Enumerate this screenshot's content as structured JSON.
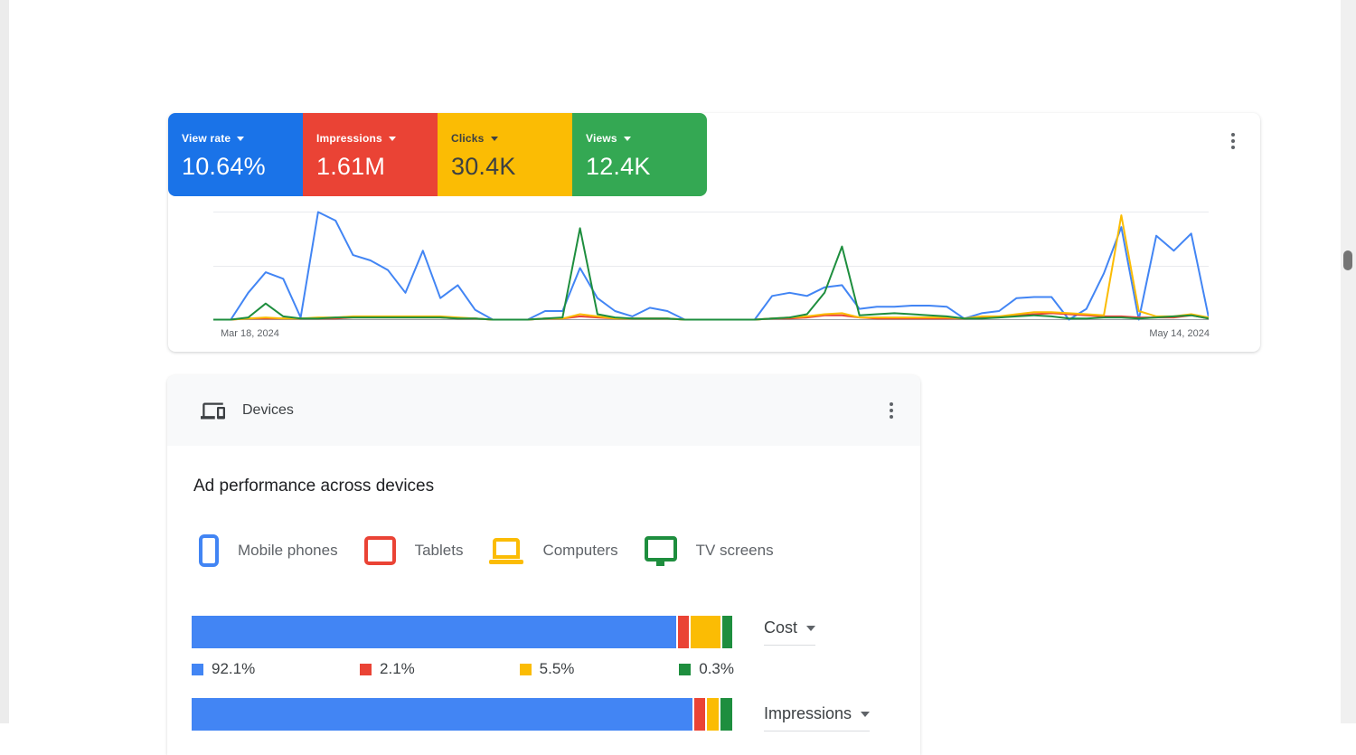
{
  "overview_card": {
    "menu_icon": "kebab-menu-icon",
    "scorecards": [
      {
        "label": "View rate",
        "value": "10.64%",
        "bg": "#1a73e8",
        "text": "#ffffff"
      },
      {
        "label": "Impressions",
        "value": "1.61M",
        "bg": "#ea4335",
        "text": "#ffffff"
      },
      {
        "label": "Clicks",
        "value": "30.4K",
        "bg": "#fbbc04",
        "text": "#3c4043"
      },
      {
        "label": "Views",
        "value": "12.4K",
        "bg": "#34a853",
        "text": "#ffffff"
      }
    ]
  },
  "chart_data": [
    {
      "id": "performance-over-time",
      "type": "line",
      "x_start_label": "Mar 18, 2024",
      "x_end_label": "May 14, 2024",
      "x_points": 58,
      "ylim": [
        0,
        100
      ],
      "y_units": "percent of chart maximum (no y-axis tick labels shown)",
      "grid": "2 light horizontal gridlines plus gray baseline",
      "legend_position": "none (line colors match scorecards)",
      "series": [
        {
          "name": "View rate",
          "color": "#4285f4",
          "values": [
            0,
            0,
            25,
            44,
            38,
            2,
            100,
            92,
            60,
            55,
            46,
            25,
            64,
            20,
            32,
            9,
            0,
            0,
            0,
            8,
            8,
            48,
            20,
            8,
            3,
            11,
            8,
            0,
            0,
            0,
            0,
            0,
            22,
            25,
            22,
            30,
            32,
            10,
            12,
            12,
            13,
            13,
            12,
            1,
            6,
            8,
            20,
            21,
            21,
            0,
            10,
            43,
            86,
            0,
            78,
            64,
            80,
            2
          ]
        },
        {
          "name": "Impressions",
          "color": "#ea4335",
          "values": [
            0,
            0,
            1,
            1,
            1,
            1,
            1,
            1,
            2,
            2,
            2,
            2,
            2,
            2,
            1,
            1,
            0,
            0,
            0,
            1,
            1,
            3,
            2,
            1,
            1,
            1,
            1,
            0,
            0,
            0,
            0,
            0,
            1,
            1,
            2,
            4,
            4,
            2,
            1,
            1,
            1,
            1,
            1,
            1,
            2,
            2,
            4,
            5,
            6,
            5,
            4,
            3,
            3,
            2,
            2,
            2,
            4,
            1
          ]
        },
        {
          "name": "Clicks",
          "color": "#fbbc04",
          "values": [
            0,
            0,
            1,
            2,
            1,
            1,
            2,
            2,
            3,
            3,
            3,
            3,
            3,
            3,
            2,
            1,
            0,
            0,
            0,
            1,
            1,
            5,
            3,
            1,
            1,
            1,
            1,
            0,
            0,
            0,
            0,
            0,
            1,
            2,
            3,
            5,
            6,
            2,
            2,
            2,
            2,
            2,
            2,
            1,
            3,
            3,
            5,
            7,
            7,
            6,
            5,
            4,
            97,
            8,
            3,
            3,
            5,
            2
          ]
        },
        {
          "name": "Views",
          "color": "#1e8e3e",
          "values": [
            0,
            0,
            2,
            15,
            3,
            1,
            1,
            2,
            2,
            2,
            2,
            2,
            2,
            2,
            1,
            1,
            0,
            0,
            0,
            1,
            2,
            85,
            5,
            2,
            1,
            1,
            1,
            0,
            0,
            0,
            0,
            0,
            1,
            2,
            5,
            25,
            68,
            4,
            5,
            6,
            5,
            4,
            3,
            1,
            1,
            2,
            3,
            4,
            3,
            1,
            1,
            2,
            2,
            1,
            2,
            3,
            4,
            1
          ]
        }
      ]
    },
    {
      "id": "ad-performance-across-devices",
      "type": "stacked-bar",
      "categories": [
        "Mobile phones",
        "Tablets",
        "Computers",
        "TV screens"
      ],
      "colors": [
        "#4285f4",
        "#ea4335",
        "#fbbc04",
        "#1e8e3e"
      ],
      "bars": [
        {
          "metric": "Cost",
          "values": [
            92.1,
            2.1,
            5.5,
            0.3
          ],
          "labels": [
            "92.1%",
            "2.1%",
            "5.5%",
            "0.3%"
          ],
          "labels_visible": true
        },
        {
          "metric": "Impressions",
          "values": [
            92,
            1.9,
            2.2,
            2.2
          ],
          "labels": [],
          "labels_visible": false
        }
      ]
    }
  ],
  "devices_card": {
    "icon": "devices-icon",
    "menu_icon": "kebab-menu-icon",
    "title": "Devices",
    "heading": "Ad performance across devices",
    "legend": [
      {
        "label": "Mobile phones",
        "color": "#4285f4",
        "icon": "mobile-phone-icon"
      },
      {
        "label": "Tablets",
        "color": "#ea4335",
        "icon": "tablet-icon"
      },
      {
        "label": "Computers",
        "color": "#fbbc04",
        "icon": "laptop-icon"
      },
      {
        "label": "TV screens",
        "color": "#1e8e3e",
        "icon": "tv-icon"
      }
    ]
  }
}
